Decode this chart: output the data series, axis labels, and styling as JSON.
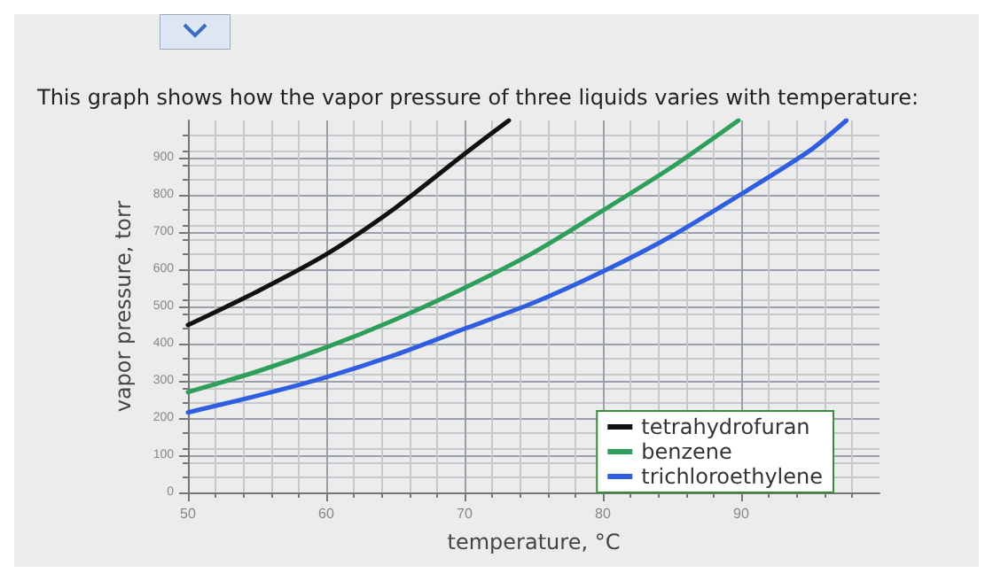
{
  "chart_data": {
    "type": "line",
    "title": "This graph shows how the vapor pressure of three liquids varies with temperature:",
    "xlabel": "temperature, °C",
    "ylabel": "vapor pressure, torr",
    "xlim": [
      50,
      100
    ],
    "xticks": [
      50,
      60,
      70,
      80,
      90
    ],
    "ylim": [
      0,
      1000
    ],
    "yticks": [
      0,
      100,
      200,
      300,
      400,
      500,
      600,
      700,
      800,
      900
    ],
    "grid": true,
    "legend": "bottom right",
    "marker": "none",
    "line_style": "solid",
    "series": [
      {
        "name": "tetrahydrofuran",
        "color": "#111111",
        "x": [
          50,
          55,
          60,
          65,
          70,
          73.2
        ],
        "values": [
          450,
          540,
          640,
          765,
          910,
          1000
        ]
      },
      {
        "name": "benzene",
        "color": "#2e9e5a",
        "x": [
          50,
          55,
          60,
          65,
          70,
          75,
          80,
          85,
          89.8
        ],
        "values": [
          270,
          325,
          390,
          465,
          550,
          645,
          758,
          875,
          1000
        ]
      },
      {
        "name": "trichloroethylene",
        "color": "#2f5fe0",
        "x": [
          50,
          55,
          60,
          65,
          70,
          75,
          80,
          85,
          90,
          95,
          97.6
        ],
        "values": [
          215,
          260,
          310,
          370,
          440,
          510,
          594,
          690,
          802,
          920,
          1000
        ]
      }
    ]
  }
}
